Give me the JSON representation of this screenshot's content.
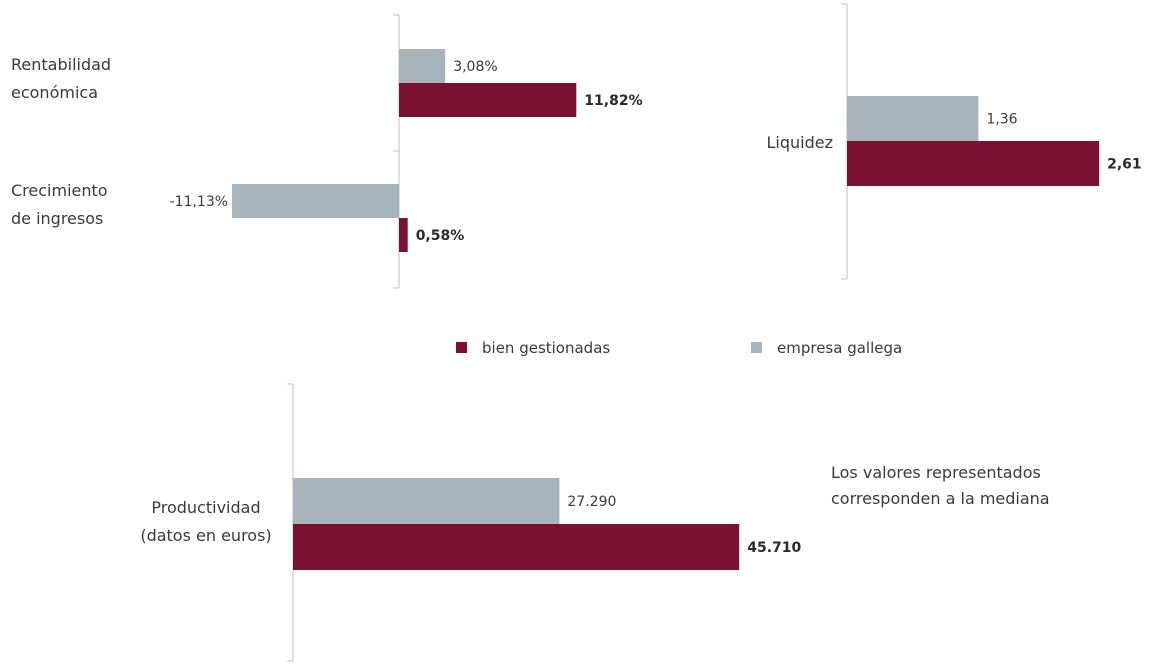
{
  "colors": {
    "bien": "#7b1132",
    "empresa": "#a8b4bb",
    "axis": "#b9c1c6"
  },
  "legend": [
    {
      "key": "bien",
      "label": "bien gestionadas"
    },
    {
      "key": "empresa",
      "label": "empresa gallega"
    }
  ],
  "note": [
    "Los valores representados",
    "corresponden a la mediana"
  ],
  "chart_data": [
    {
      "type": "bar",
      "orientation": "horizontal",
      "categories": [
        {
          "label": [
            "Rentabilidad",
            "económica"
          ],
          "empresa": 3.08,
          "bien": 11.82,
          "empresa_label": "3,08%",
          "bien_label": "11,82%"
        },
        {
          "label": [
            "Crecimiento",
            "de ingresos"
          ],
          "empresa": -11.13,
          "bien": 0.58,
          "empresa_label": "-11,13%",
          "bien_label": "0,58%"
        }
      ]
    },
    {
      "type": "bar",
      "orientation": "horizontal",
      "categories": [
        {
          "label": [
            "Liquidez"
          ],
          "empresa": 1.36,
          "bien": 2.61,
          "empresa_label": "1,36",
          "bien_label": "2,61"
        }
      ]
    },
    {
      "type": "bar",
      "orientation": "horizontal",
      "categories": [
        {
          "label": [
            "Productividad",
            "(datos en euros)"
          ],
          "empresa": 27290,
          "bien": 45710,
          "empresa_label": "27.290",
          "bien_label": "45.710"
        }
      ]
    }
  ]
}
